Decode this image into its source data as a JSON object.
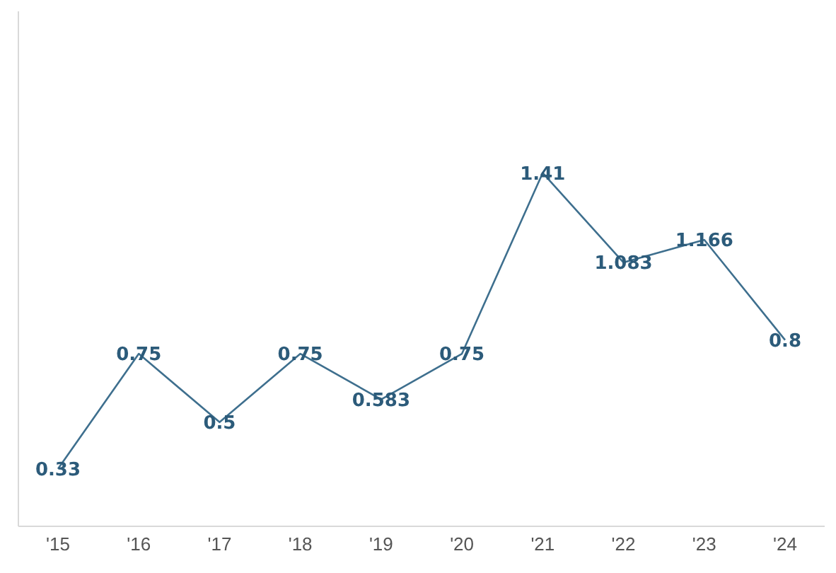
{
  "chart_data": {
    "type": "line",
    "categories": [
      "'15",
      "'16",
      "'17",
      "'18",
      "'19",
      "'20",
      "'21",
      "'22",
      "'23",
      "'24"
    ],
    "series": [
      {
        "color": "#3e6f8e",
        "values": [
          0.33,
          0.75,
          0.5,
          0.75,
          0.583,
          0.75,
          1.41,
          1.083,
          1.166,
          0.8
        ]
      }
    ],
    "ylim": [
      0.12,
      2.0
    ],
    "data_labels": true,
    "grid": false,
    "legend": false,
    "marker": "none",
    "tick_labels": "x"
  }
}
